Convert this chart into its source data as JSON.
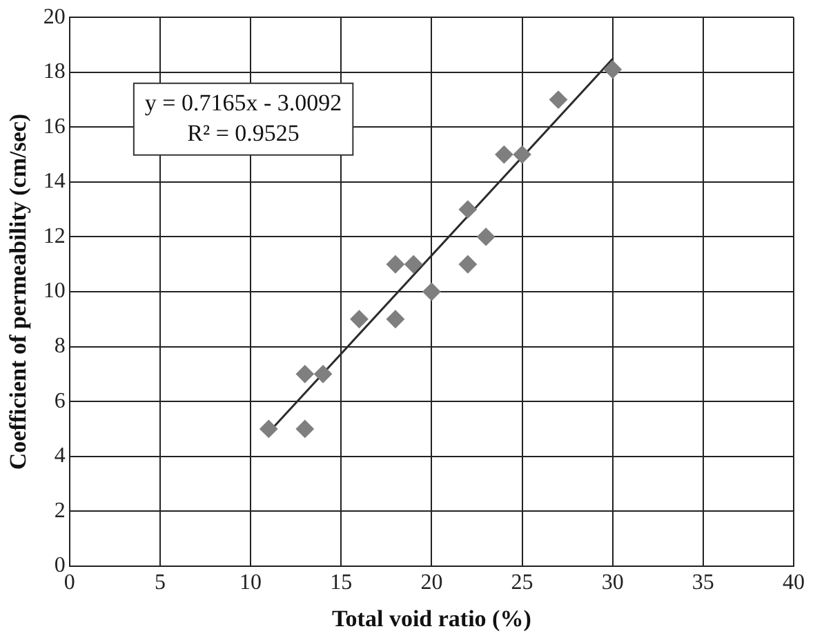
{
  "chart_data": {
    "type": "scatter",
    "xlabel": "Total void ratio (%)",
    "ylabel": "Coefficient of permeability (cm/sec)",
    "xlim": [
      0,
      40
    ],
    "xticks": [
      0,
      5,
      10,
      15,
      20,
      25,
      30,
      35,
      40
    ],
    "ylim": [
      0,
      20
    ],
    "yticks": [
      0,
      2,
      4,
      6,
      8,
      10,
      12,
      14,
      16,
      18,
      20
    ],
    "grid": true,
    "legend": false,
    "annotations": [
      "y = 0.7165x - 3.0092",
      "R² = 0.9525"
    ],
    "series": [
      {
        "type": "scatter",
        "color": "#7f7f7f",
        "marker": "diamond",
        "x": [
          11,
          13,
          13,
          14,
          16,
          18,
          18,
          19,
          20,
          22,
          22,
          23,
          24,
          25,
          27,
          30
        ],
        "values": [
          5,
          5,
          7,
          7,
          9,
          9,
          11,
          11,
          10,
          11,
          13,
          12,
          15,
          15,
          17,
          18.1
        ]
      },
      {
        "type": "line",
        "color": "#2b2b2b",
        "marker": "none",
        "line_style": "solid",
        "x": [
          11,
          30
        ],
        "values": [
          4.87,
          18.49
        ]
      }
    ]
  }
}
